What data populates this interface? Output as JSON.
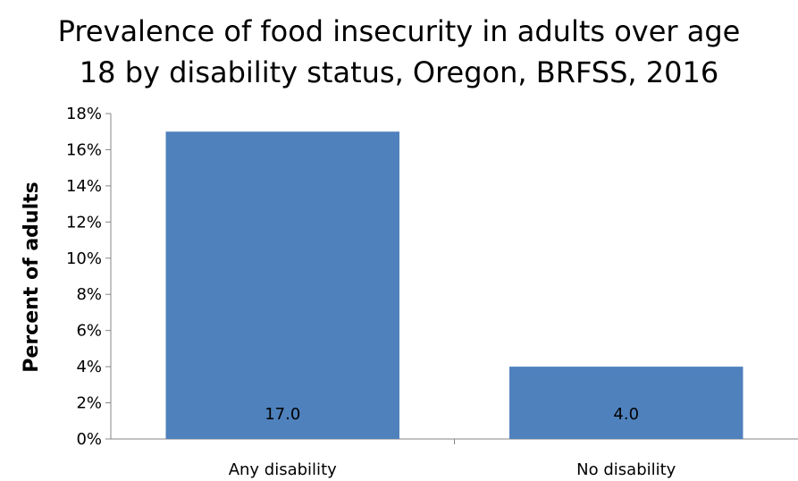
{
  "chart_data": {
    "type": "bar",
    "title_lines": [
      "Prevalence of food insecurity in adults over age",
      "18 by disability status, Oregon, BRFSS, 2016"
    ],
    "xlabel": "",
    "ylabel": "Percent of adults",
    "categories": [
      "Any disability",
      "No disability"
    ],
    "values": [
      17.0,
      4.0
    ],
    "data_labels": [
      "17.0",
      "4.0"
    ],
    "ylim": [
      0,
      18
    ],
    "y_ticks": [
      0,
      2,
      4,
      6,
      8,
      10,
      12,
      14,
      16,
      18
    ],
    "y_tick_labels": [
      "0%",
      "2%",
      "4%",
      "6%",
      "8%",
      "10%",
      "12%",
      "14%",
      "16%",
      "18%"
    ],
    "grid": false,
    "legend": "none",
    "bar_color": "#4F81BD"
  }
}
